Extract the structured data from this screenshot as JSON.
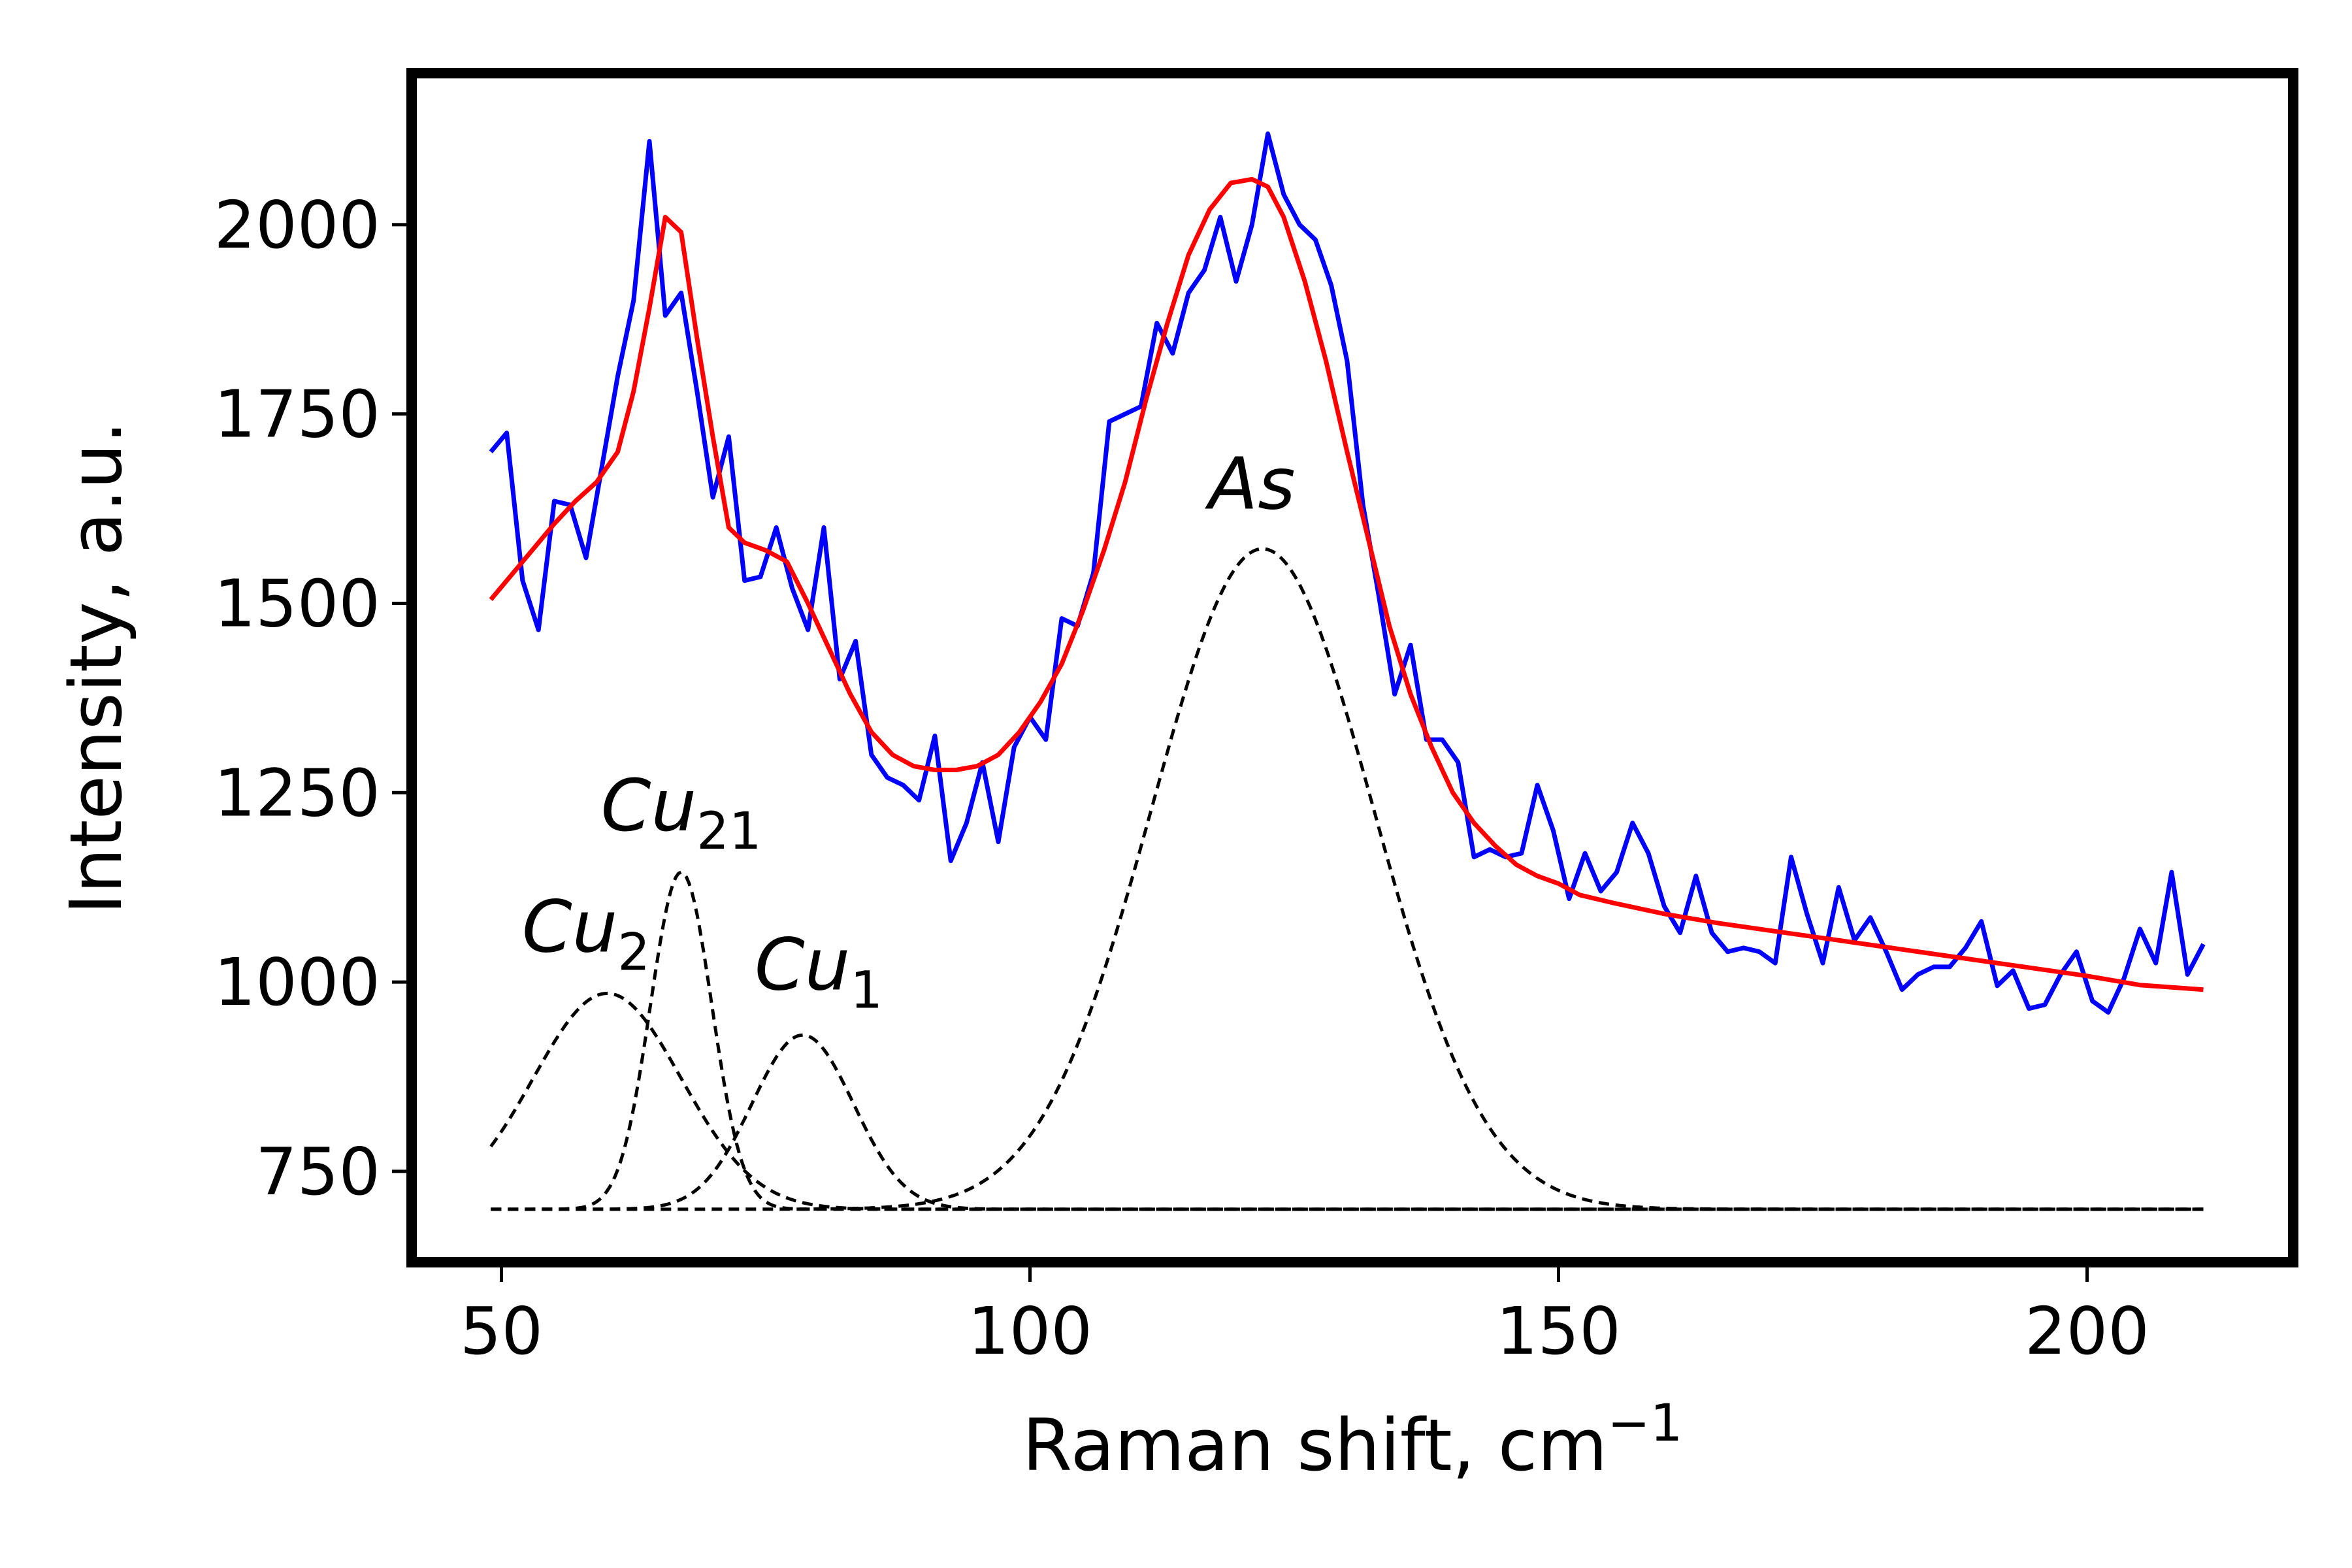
{
  "chart_data": {
    "type": "line",
    "title": "",
    "xlabel": "Raman shift, cm",
    "xlabel_sup": "−1",
    "ylabel": "Intensity, a.u.",
    "xlim": [
      41.5,
      219.5
    ],
    "ylim": [
      630,
      2200
    ],
    "xticks": [
      50,
      100,
      150,
      200
    ],
    "yticks": [
      750,
      1000,
      1250,
      1500,
      1750,
      2000
    ],
    "grid": false,
    "colors": {
      "measured": "#0000ff",
      "fit": "#ff0000",
      "components": "#000000",
      "frame": "#000000"
    },
    "annotations": [
      {
        "base": "Cu",
        "sub": "21",
        "x": 67,
        "y": 1200
      },
      {
        "base": "Cu",
        "sub": "2",
        "x": 58,
        "y": 1040
      },
      {
        "base": "Cu",
        "sub": "1",
        "x": 80,
        "y": 990
      },
      {
        "base": "As",
        "sub": "",
        "x": 121,
        "y": 1625
      }
    ],
    "series": [
      {
        "style": "solid",
        "color": "#0000ff",
        "x": [
          49,
          50.5,
          52,
          53.5,
          55,
          56.5,
          58,
          59.5,
          61,
          62.5,
          64,
          65.5,
          67,
          68.5,
          70,
          71.5,
          73,
          74.5,
          76,
          77.5,
          79,
          80.5,
          82,
          83.5,
          85,
          86.5,
          88,
          89.5,
          91,
          92.5,
          94,
          95.5,
          97,
          98.5,
          100,
          101.5,
          103,
          104.5,
          106,
          107.5,
          109,
          110.5,
          112,
          113.5,
          115,
          116.5,
          118,
          119.5,
          121,
          122.5,
          124,
          125.5,
          127,
          128.5,
          130,
          131.5,
          133,
          134.5,
          136,
          137.5,
          139,
          140.5,
          142,
          143.5,
          145,
          146.5,
          148,
          149.5,
          151,
          152.5,
          154,
          155.5,
          157,
          158.5,
          160,
          161.5,
          163,
          164.5,
          166,
          167.5,
          169,
          170.5,
          172,
          173.5,
          175,
          176.5,
          178,
          179.5,
          181,
          182.5,
          184,
          185.5,
          187,
          188.5,
          190,
          191.5,
          193,
          194.5,
          196,
          197.5,
          199,
          200.5,
          202,
          203.5,
          205,
          206.5,
          208,
          209.5,
          211
        ],
        "y": [
          1700,
          1725,
          1530,
          1465,
          1635,
          1630,
          1560,
          1680,
          1800,
          1900,
          2110,
          1880,
          1910,
          1780,
          1640,
          1720,
          1530,
          1535,
          1600,
          1520,
          1465,
          1600,
          1400,
          1450,
          1300,
          1270,
          1260,
          1240,
          1325,
          1160,
          1210,
          1290,
          1185,
          1310,
          1350,
          1320,
          1480,
          1470,
          1540,
          1740,
          1750,
          1760,
          1870,
          1830,
          1910,
          1940,
          2010,
          1925,
          2000,
          2120,
          2040,
          2000,
          1980,
          1920,
          1820,
          1630,
          1510,
          1380,
          1445,
          1320,
          1320,
          1290,
          1165,
          1175,
          1165,
          1170,
          1260,
          1200,
          1110,
          1170,
          1120,
          1145,
          1210,
          1170,
          1100,
          1065,
          1140,
          1065,
          1040,
          1045,
          1040,
          1025,
          1165,
          1090,
          1025,
          1125,
          1055,
          1085,
          1040,
          990,
          1010,
          1020,
          1020,
          1045,
          1080,
          995,
          1015,
          965,
          970,
          1010,
          1040,
          975,
          960,
          1005,
          1070,
          1025,
          1145,
          1010,
          1050
        ]
      },
      {
        "style": "solid",
        "color": "#ff0000",
        "x": [
          49,
          52,
          55,
          57,
          59,
          61,
          62.5,
          64,
          65.5,
          67,
          68.5,
          70,
          71.5,
          73,
          75,
          77,
          79,
          81,
          83,
          85,
          87,
          89,
          91,
          93,
          95,
          97,
          99,
          101,
          103,
          105,
          107,
          109,
          111,
          113,
          115,
          117,
          119,
          121,
          122.5,
          124,
          126,
          128,
          130,
          132,
          134,
          136,
          138,
          140,
          142,
          144,
          146,
          148,
          150,
          152,
          155,
          160,
          165,
          170,
          175,
          180,
          185,
          190,
          195,
          200,
          205,
          211
        ],
        "y": [
          1505,
          1555,
          1605,
          1635,
          1660,
          1700,
          1780,
          1890,
          2010,
          1990,
          1850,
          1720,
          1600,
          1580,
          1570,
          1555,
          1500,
          1440,
          1380,
          1330,
          1300,
          1285,
          1280,
          1280,
          1285,
          1300,
          1330,
          1370,
          1420,
          1490,
          1570,
          1660,
          1770,
          1870,
          1960,
          2020,
          2055,
          2060,
          2050,
          2010,
          1925,
          1820,
          1700,
          1585,
          1470,
          1380,
          1310,
          1250,
          1210,
          1180,
          1155,
          1140,
          1130,
          1115,
          1105,
          1090,
          1078,
          1068,
          1058,
          1048,
          1038,
          1028,
          1018,
          1008,
          996,
          990
        ]
      },
      {
        "style": "dashed",
        "color": "#000000",
        "component": "Cu2",
        "gaussian": {
          "center": 60,
          "amplitude": 285,
          "sigma": 7,
          "baseline": 700
        },
        "x_range": [
          49,
          211
        ]
      },
      {
        "style": "dashed",
        "color": "#000000",
        "component": "Cu21",
        "gaussian": {
          "center": 67,
          "amplitude": 445,
          "sigma": 2.9,
          "baseline": 700
        },
        "x_range": [
          49,
          211
        ]
      },
      {
        "style": "dashed",
        "color": "#000000",
        "component": "Cu1",
        "gaussian": {
          "center": 78.5,
          "amplitude": 230,
          "sigma": 4.8,
          "baseline": 700
        },
        "x_range": [
          49,
          211
        ]
      },
      {
        "style": "dashed",
        "color": "#000000",
        "component": "As",
        "gaussian": {
          "center": 122,
          "amplitude": 872,
          "sigma": 10.5,
          "baseline": 700
        },
        "x_range": [
          49,
          211
        ]
      }
    ]
  }
}
